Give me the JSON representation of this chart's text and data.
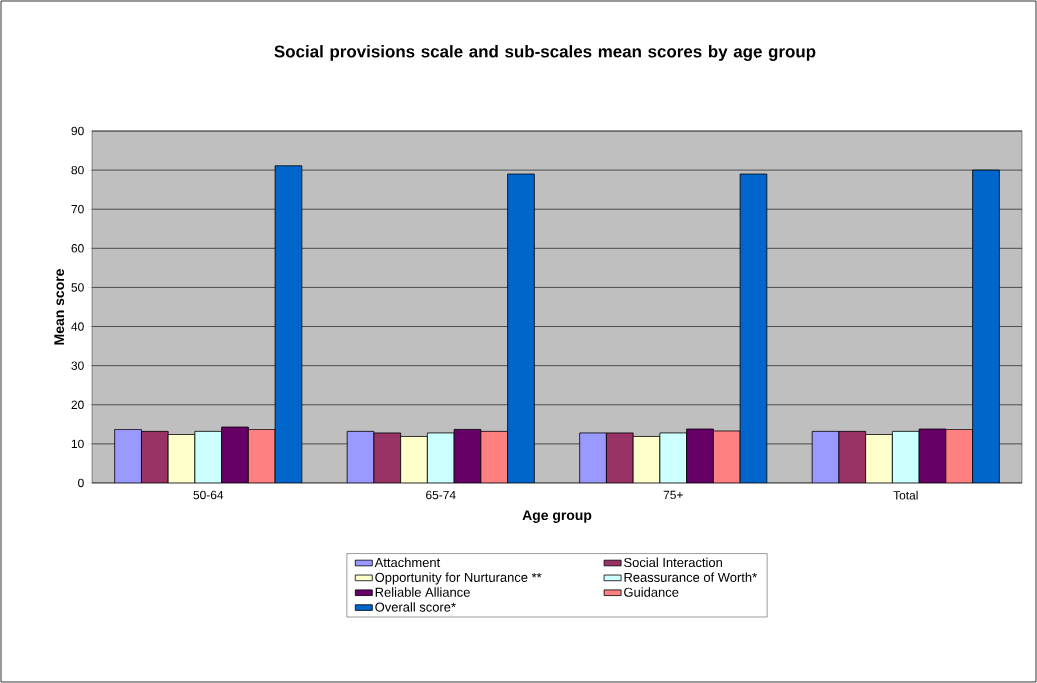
{
  "chart_data": {
    "type": "bar",
    "title": "Social provisions scale and sub-scales mean scores by age group",
    "xlabel": "Age group",
    "ylabel": "Mean score",
    "categories": [
      "50-64",
      "65-74",
      "75+",
      "Total"
    ],
    "series": [
      {
        "name": "Attachment",
        "color": "#9999ff",
        "values": [
          13.7,
          13.2,
          12.8,
          13.2
        ]
      },
      {
        "name": "Social Interaction",
        "color": "#993366",
        "values": [
          13.2,
          12.8,
          12.8,
          13.2
        ]
      },
      {
        "name": "Opportunity for Nurturance **",
        "color": "#ffffcc",
        "values": [
          12.4,
          11.9,
          11.9,
          12.4
        ]
      },
      {
        "name": "Reassurance of Worth*",
        "color": "#ccffff",
        "values": [
          13.2,
          12.8,
          12.8,
          13.2
        ]
      },
      {
        "name": "Reliable Alliance",
        "color": "#660066",
        "values": [
          14.3,
          13.7,
          13.8,
          13.8
        ]
      },
      {
        "name": "Guidance",
        "color": "#ff8080",
        "values": [
          13.7,
          13.2,
          13.3,
          13.7
        ]
      },
      {
        "name": "Overall score*",
        "color": "#0066cc",
        "values": [
          81.1,
          79.0,
          79.0,
          80.0
        ]
      }
    ],
    "ylim": [
      0,
      90
    ],
    "yticks": [
      0,
      10,
      20,
      30,
      40,
      50,
      60,
      70,
      80,
      90
    ],
    "grid": "y",
    "legend": "bottom"
  }
}
